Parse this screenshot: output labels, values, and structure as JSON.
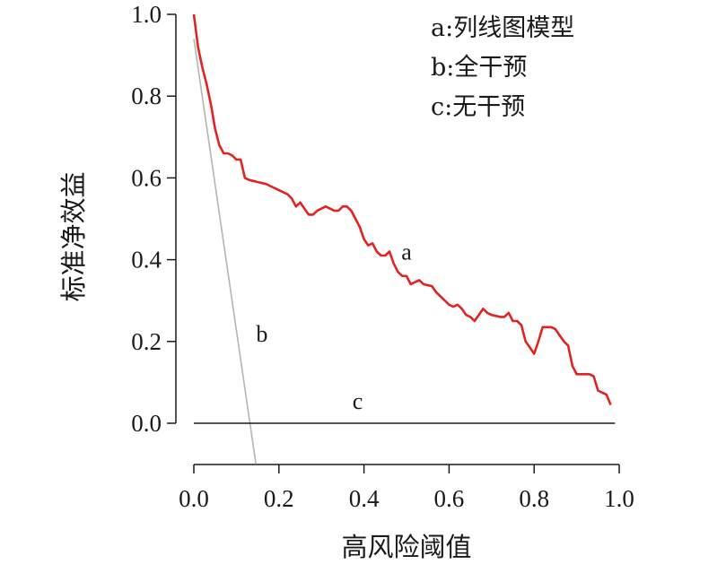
{
  "chart_data": {
    "type": "line",
    "xlabel": "高风险阈值",
    "ylabel": "标准净效益",
    "xlim": [
      0,
      1
    ],
    "ylim": [
      -0.1,
      1.0
    ],
    "x_ticks": [
      "0.0",
      "0.2",
      "0.4",
      "0.6",
      "0.8",
      "1.0"
    ],
    "y_ticks": [
      "0.0",
      "0.2",
      "0.4",
      "0.6",
      "0.8",
      "1.0"
    ],
    "grid": false,
    "legend_position": "top-right",
    "legend": [
      "a:列线图模型",
      "b:全干预",
      "c:无干预"
    ],
    "series": [
      {
        "name": "a",
        "color": "#e32222",
        "points": [
          [
            0.0,
            1.0
          ],
          [
            0.01,
            0.92
          ],
          [
            0.02,
            0.87
          ],
          [
            0.03,
            0.83
          ],
          [
            0.04,
            0.78
          ],
          [
            0.05,
            0.72
          ],
          [
            0.06,
            0.68
          ],
          [
            0.07,
            0.66
          ],
          [
            0.08,
            0.66
          ],
          [
            0.09,
            0.655
          ],
          [
            0.1,
            0.645
          ],
          [
            0.11,
            0.645
          ],
          [
            0.12,
            0.6
          ],
          [
            0.13,
            0.595
          ],
          [
            0.15,
            0.59
          ],
          [
            0.17,
            0.585
          ],
          [
            0.18,
            0.58
          ],
          [
            0.2,
            0.57
          ],
          [
            0.22,
            0.56
          ],
          [
            0.23,
            0.55
          ],
          [
            0.24,
            0.53
          ],
          [
            0.25,
            0.54
          ],
          [
            0.26,
            0.525
          ],
          [
            0.27,
            0.51
          ],
          [
            0.28,
            0.51
          ],
          [
            0.29,
            0.52
          ],
          [
            0.3,
            0.525
          ],
          [
            0.31,
            0.53
          ],
          [
            0.32,
            0.525
          ],
          [
            0.33,
            0.52
          ],
          [
            0.34,
            0.52
          ],
          [
            0.35,
            0.53
          ],
          [
            0.36,
            0.53
          ],
          [
            0.37,
            0.52
          ],
          [
            0.38,
            0.5
          ],
          [
            0.39,
            0.48
          ],
          [
            0.4,
            0.45
          ],
          [
            0.41,
            0.435
          ],
          [
            0.42,
            0.44
          ],
          [
            0.43,
            0.42
          ],
          [
            0.44,
            0.41
          ],
          [
            0.45,
            0.41
          ],
          [
            0.46,
            0.42
          ],
          [
            0.47,
            0.39
          ],
          [
            0.48,
            0.37
          ],
          [
            0.49,
            0.36
          ],
          [
            0.5,
            0.36
          ],
          [
            0.51,
            0.34
          ],
          [
            0.52,
            0.345
          ],
          [
            0.53,
            0.35
          ],
          [
            0.54,
            0.34
          ],
          [
            0.56,
            0.335
          ],
          [
            0.57,
            0.32
          ],
          [
            0.58,
            0.31
          ],
          [
            0.59,
            0.3
          ],
          [
            0.6,
            0.29
          ],
          [
            0.61,
            0.285
          ],
          [
            0.62,
            0.29
          ],
          [
            0.63,
            0.28
          ],
          [
            0.64,
            0.265
          ],
          [
            0.65,
            0.26
          ],
          [
            0.66,
            0.25
          ],
          [
            0.67,
            0.265
          ],
          [
            0.68,
            0.28
          ],
          [
            0.69,
            0.27
          ],
          [
            0.7,
            0.265
          ],
          [
            0.72,
            0.26
          ],
          [
            0.73,
            0.26
          ],
          [
            0.74,
            0.27
          ],
          [
            0.75,
            0.25
          ],
          [
            0.76,
            0.25
          ],
          [
            0.77,
            0.24
          ],
          [
            0.78,
            0.2
          ],
          [
            0.79,
            0.185
          ],
          [
            0.8,
            0.17
          ],
          [
            0.81,
            0.2
          ],
          [
            0.82,
            0.235
          ],
          [
            0.83,
            0.235
          ],
          [
            0.84,
            0.235
          ],
          [
            0.85,
            0.23
          ],
          [
            0.86,
            0.215
          ],
          [
            0.87,
            0.2
          ],
          [
            0.88,
            0.19
          ],
          [
            0.89,
            0.14
          ],
          [
            0.9,
            0.12
          ],
          [
            0.91,
            0.12
          ],
          [
            0.92,
            0.12
          ],
          [
            0.93,
            0.12
          ],
          [
            0.94,
            0.115
          ],
          [
            0.95,
            0.08
          ],
          [
            0.96,
            0.075
          ],
          [
            0.97,
            0.07
          ],
          [
            0.98,
            0.045
          ]
        ]
      },
      {
        "name": "b",
        "color": "#b5b5b5",
        "points": [
          [
            0.0,
            0.94
          ],
          [
            0.146,
            -0.1
          ]
        ]
      },
      {
        "name": "c",
        "color": "#1a1a1a",
        "points": [
          [
            0.0,
            0.0
          ],
          [
            0.99,
            0.0
          ]
        ]
      }
    ],
    "annotations": [
      {
        "text": "a",
        "x": 0.5,
        "y": 0.4
      },
      {
        "text": "b",
        "x": 0.16,
        "y": 0.2
      },
      {
        "text": "c",
        "x": 0.385,
        "y": 0.035
      }
    ]
  }
}
